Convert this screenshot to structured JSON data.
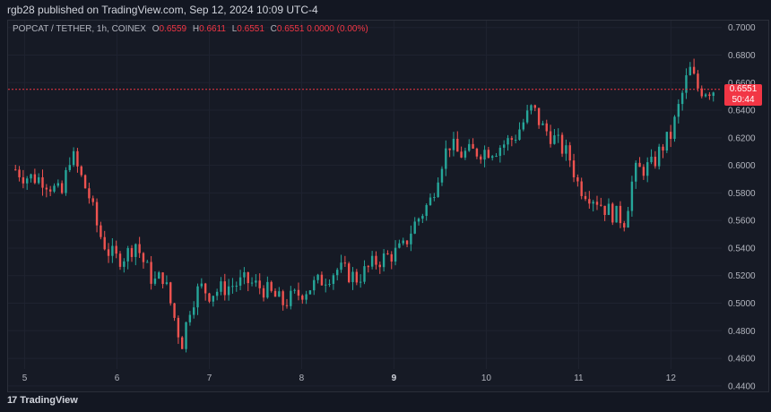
{
  "header": {
    "publisher": "rgb28 published on TradingView.com, Sep 12, 2024 10:09 UTC-4"
  },
  "legend": {
    "symbol": "POPCAT / TETHER, 1h, COINEX",
    "o_label": "O",
    "o": "0.6559",
    "h_label": "H",
    "h": "0.6611",
    "l_label": "L",
    "l": "0.6551",
    "c_label": "C",
    "c": "0.6551",
    "change": "0.0000 (0.00%)"
  },
  "price_badge": {
    "price": "0.6551",
    "countdown": "50:44"
  },
  "brand": {
    "name": "TradingView",
    "mark": "17"
  },
  "colors": {
    "up": "#26a69a",
    "down": "#ef5350",
    "background": "#131722",
    "badge": "#f23645"
  },
  "chart_data": {
    "type": "candlestick",
    "x_tick_labels": [
      "5",
      "6",
      "7",
      "8",
      "9",
      "10",
      "11",
      "12"
    ],
    "y_tick_labels": [
      "0.4400",
      "0.4600",
      "0.4800",
      "0.5000",
      "0.5200",
      "0.5400",
      "0.5600",
      "0.5800",
      "0.6000",
      "0.6200",
      "0.6400",
      "0.6600",
      "0.6800",
      "0.7000"
    ],
    "ylim": [
      0.436,
      0.705
    ],
    "last_price": 0.6551,
    "series": [
      {
        "day": 4.9,
        "close": 0.597
      },
      {
        "day": 5.0,
        "close": 0.592
      },
      {
        "day": 5.2,
        "close": 0.59
      },
      {
        "day": 5.4,
        "close": 0.578
      },
      {
        "day": 5.5,
        "close": 0.61
      },
      {
        "day": 5.6,
        "close": 0.593
      },
      {
        "day": 5.7,
        "close": 0.577
      },
      {
        "day": 5.8,
        "close": 0.552
      },
      {
        "day": 5.9,
        "close": 0.538
      },
      {
        "day": 6.0,
        "close": 0.532
      },
      {
        "day": 6.1,
        "close": 0.535
      },
      {
        "day": 6.2,
        "close": 0.544
      },
      {
        "day": 6.3,
        "close": 0.528
      },
      {
        "day": 6.4,
        "close": 0.515
      },
      {
        "day": 6.5,
        "close": 0.52
      },
      {
        "day": 6.6,
        "close": 0.495
      },
      {
        "day": 6.7,
        "close": 0.47
      },
      {
        "day": 6.8,
        "close": 0.5
      },
      {
        "day": 6.9,
        "close": 0.512
      },
      {
        "day": 7.0,
        "close": 0.507
      },
      {
        "day": 7.2,
        "close": 0.512
      },
      {
        "day": 7.4,
        "close": 0.516
      },
      {
        "day": 7.6,
        "close": 0.51
      },
      {
        "day": 7.8,
        "close": 0.5
      },
      {
        "day": 8.0,
        "close": 0.508
      },
      {
        "day": 8.2,
        "close": 0.516
      },
      {
        "day": 8.4,
        "close": 0.525
      },
      {
        "day": 8.6,
        "close": 0.518
      },
      {
        "day": 8.8,
        "close": 0.53
      },
      {
        "day": 9.0,
        "close": 0.536
      },
      {
        "day": 9.1,
        "close": 0.54
      },
      {
        "day": 9.2,
        "close": 0.555
      },
      {
        "day": 9.4,
        "close": 0.575
      },
      {
        "day": 9.5,
        "close": 0.6
      },
      {
        "day": 9.6,
        "close": 0.616
      },
      {
        "day": 9.7,
        "close": 0.608
      },
      {
        "day": 9.9,
        "close": 0.61
      },
      {
        "day": 10.1,
        "close": 0.612
      },
      {
        "day": 10.3,
        "close": 0.62
      },
      {
        "day": 10.5,
        "close": 0.642
      },
      {
        "day": 10.6,
        "close": 0.628
      },
      {
        "day": 10.7,
        "close": 0.622
      },
      {
        "day": 10.9,
        "close": 0.606
      },
      {
        "day": 11.0,
        "close": 0.585
      },
      {
        "day": 11.2,
        "close": 0.575
      },
      {
        "day": 11.3,
        "close": 0.568
      },
      {
        "day": 11.5,
        "close": 0.56
      },
      {
        "day": 11.6,
        "close": 0.595
      },
      {
        "day": 11.8,
        "close": 0.6
      },
      {
        "day": 11.9,
        "close": 0.613
      },
      {
        "day": 12.0,
        "close": 0.622
      },
      {
        "day": 12.2,
        "close": 0.67
      },
      {
        "day": 12.3,
        "close": 0.655
      },
      {
        "day": 12.5,
        "close": 0.6551
      }
    ]
  }
}
